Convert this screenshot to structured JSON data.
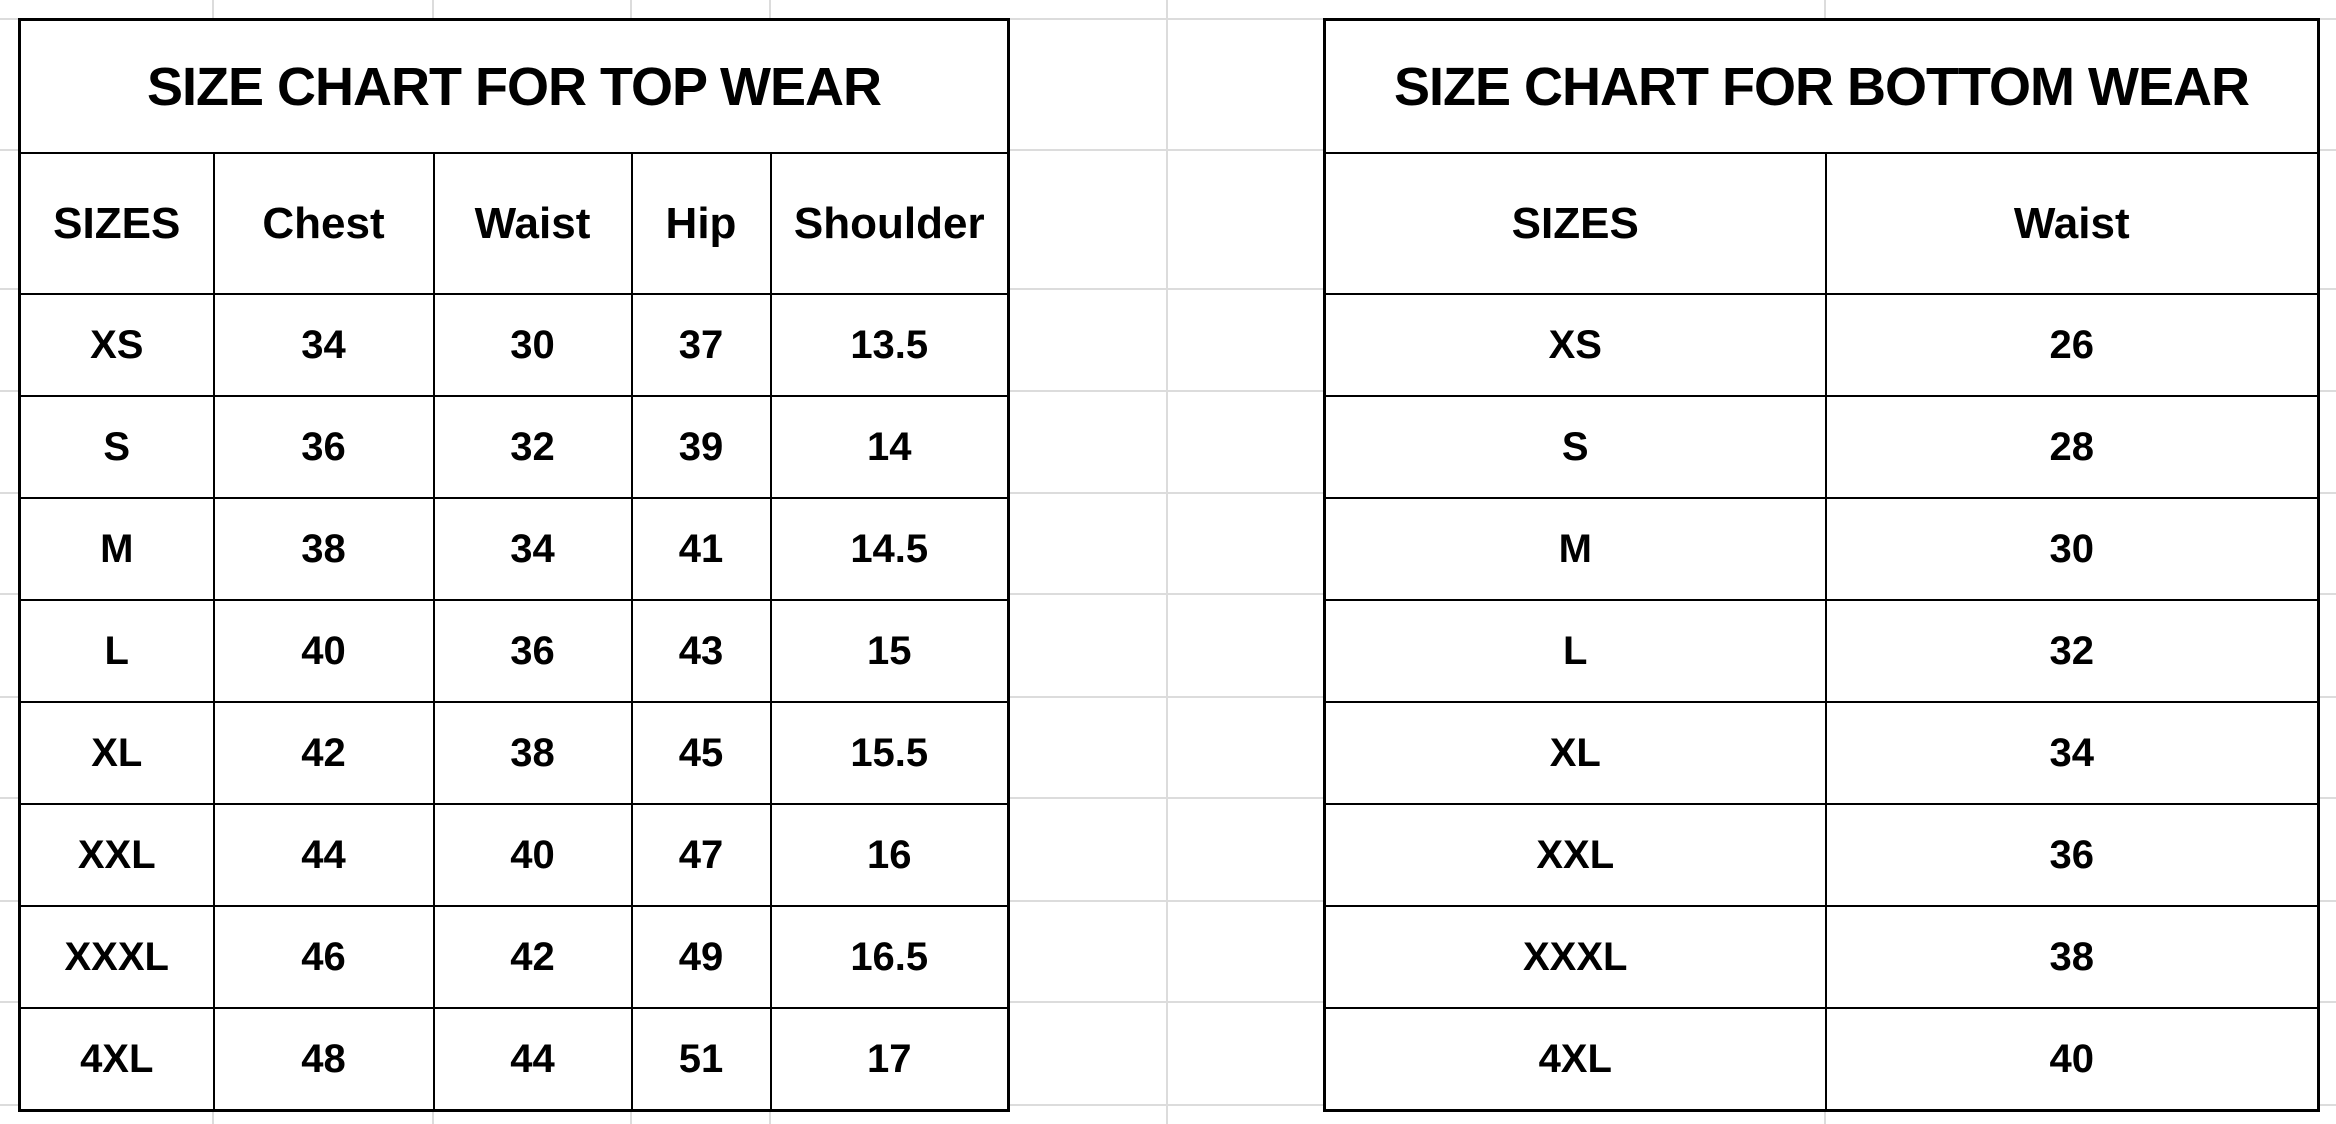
{
  "top_wear": {
    "title": "SIZE CHART FOR TOP WEAR",
    "headers": [
      "SIZES",
      "Chest",
      "Waist",
      "Hip",
      "Shoulder"
    ],
    "rows": [
      [
        "XS",
        "34",
        "30",
        "37",
        "13.5"
      ],
      [
        "S",
        "36",
        "32",
        "39",
        "14"
      ],
      [
        "M",
        "38",
        "34",
        "41",
        "14.5"
      ],
      [
        "L",
        "40",
        "36",
        "43",
        "15"
      ],
      [
        "XL",
        "42",
        "38",
        "45",
        "15.5"
      ],
      [
        "XXL",
        "44",
        "40",
        "47",
        "16"
      ],
      [
        "XXXL",
        "46",
        "42",
        "49",
        "16.5"
      ],
      [
        "4XL",
        "48",
        "44",
        "51",
        "17"
      ]
    ]
  },
  "bottom_wear": {
    "title": "SIZE CHART FOR BOTTOM WEAR",
    "headers": [
      "SIZES",
      "Waist"
    ],
    "rows": [
      [
        "XS",
        "26"
      ],
      [
        "S",
        "28"
      ],
      [
        "M",
        "30"
      ],
      [
        "L",
        "32"
      ],
      [
        "XL",
        "34"
      ],
      [
        "XXL",
        "36"
      ],
      [
        "XXXL",
        "38"
      ],
      [
        "4XL",
        "40"
      ]
    ]
  }
}
